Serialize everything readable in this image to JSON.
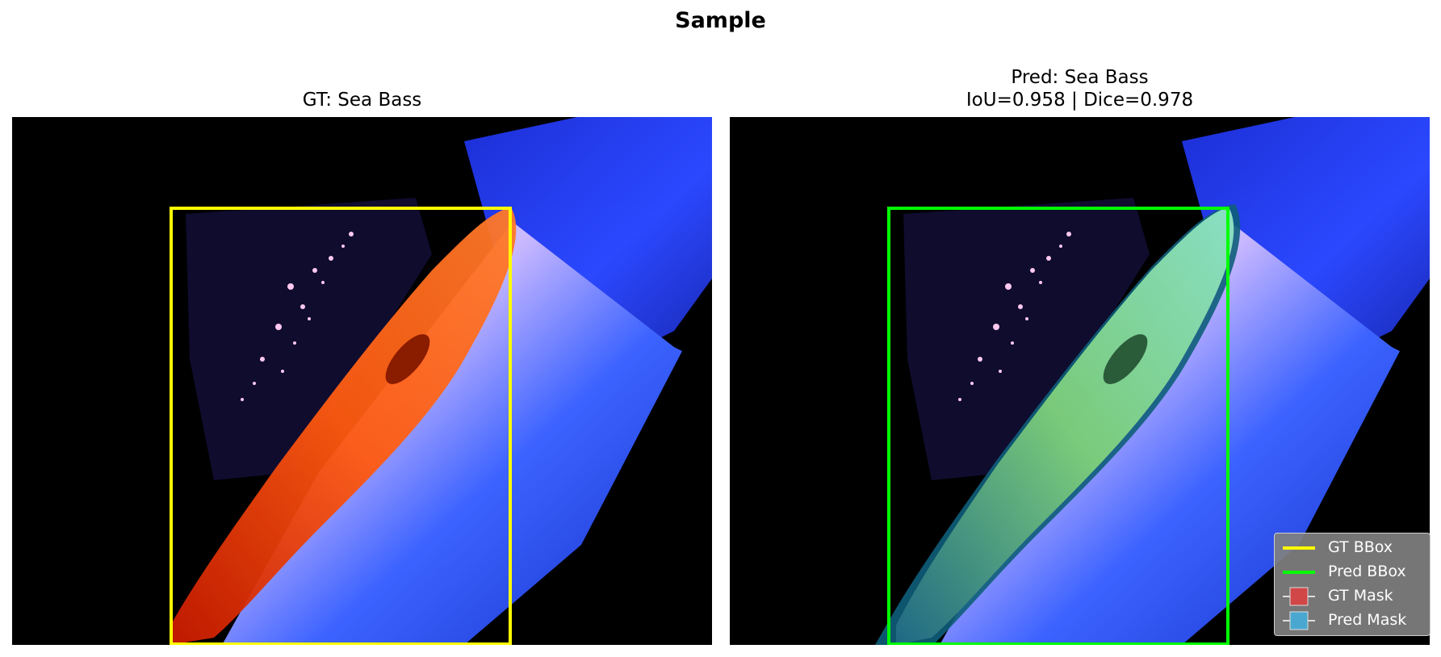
{
  "figure": {
    "title": "Sample"
  },
  "panels": [
    {
      "id": "gt",
      "title_line1": "",
      "title_line2": "GT: Sea Bass",
      "bbox_color": "#ffff00",
      "mask_color": "#ff2a00"
    },
    {
      "id": "pred",
      "title_line1": "Pred: Sea Bass",
      "title_line2": "IoU=0.958 | Dice=0.978",
      "bbox_color": "#00ff00",
      "mask_color": "#3fb8d8"
    }
  ],
  "legend": {
    "items": [
      {
        "label": "GT BBox",
        "kind": "line",
        "color": "#ffff00"
      },
      {
        "label": "Pred BBox",
        "kind": "line",
        "color": "#00ff00"
      },
      {
        "label": "GT Mask",
        "kind": "patch",
        "color": "#d14646"
      },
      {
        "label": "Pred Mask",
        "kind": "patch",
        "color": "#4aa8d0"
      }
    ]
  }
}
